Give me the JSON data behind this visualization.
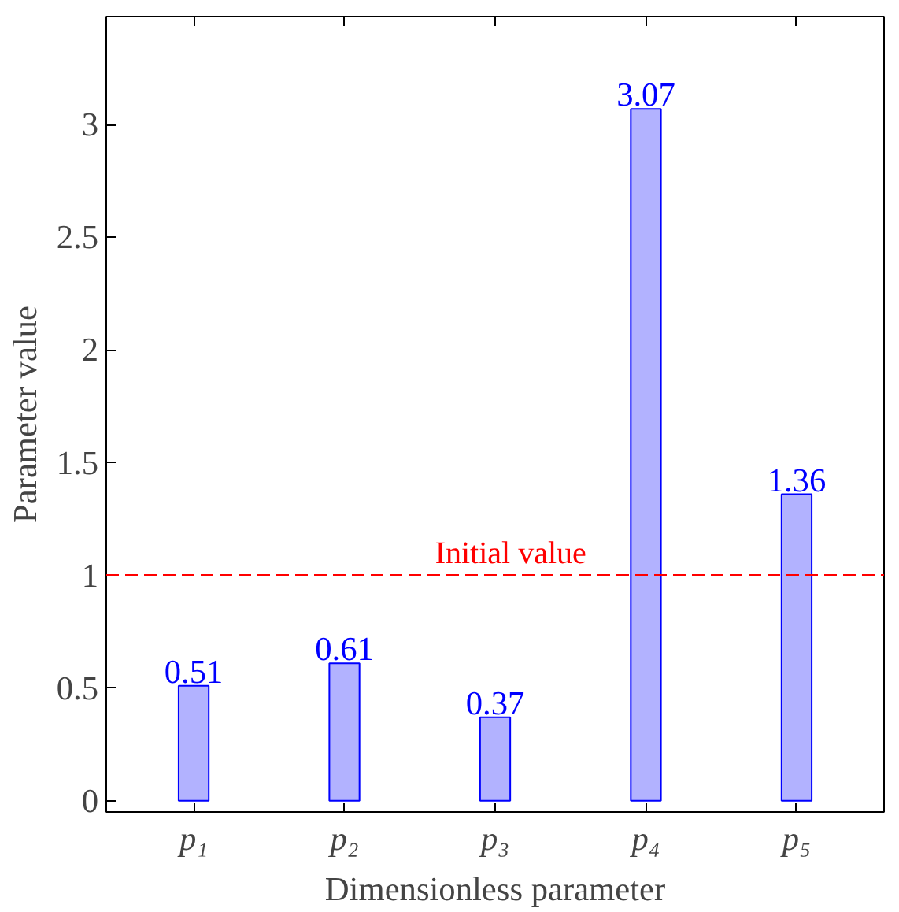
{
  "chart_data": {
    "type": "bar",
    "xlabel": "Dimensionless parameter",
    "ylabel": "Parameter value",
    "categories": [
      "p₁",
      "p₂",
      "p₃",
      "p₄",
      "p₅"
    ],
    "series": [
      {
        "color": "#0000ff",
        "values": [
          0.51,
          0.61,
          0.37,
          3.07,
          1.36
        ]
      }
    ],
    "ylim": [
      -0.05,
      3.48
    ],
    "yticks": [
      0,
      0.5,
      1,
      1.5,
      2,
      2.5,
      3
    ],
    "data_labels": true,
    "grid": false,
    "ref_lines": [
      {
        "axis": "y",
        "value": 1,
        "label": "Initial value",
        "color": "#ff0000",
        "line_style": "dashed"
      }
    ]
  }
}
